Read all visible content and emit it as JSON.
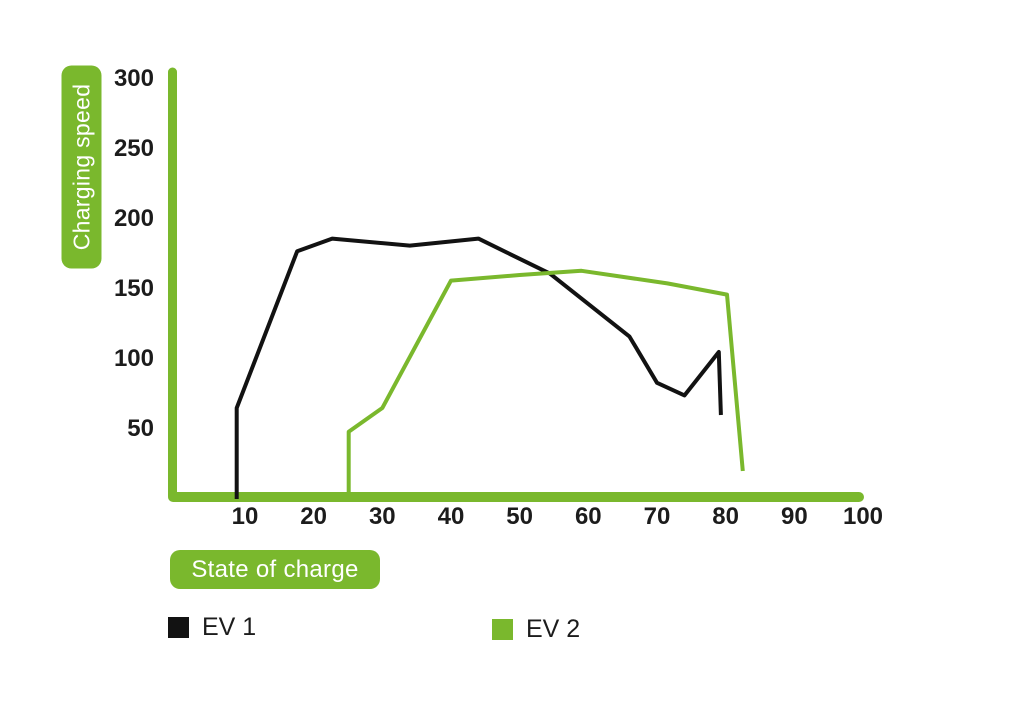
{
  "colors": {
    "accent_green": "#7ab82d",
    "series_black": "#121212",
    "tick_text": "#1c1c1c"
  },
  "chart_data": {
    "type": "line",
    "title": "",
    "xlabel": "State of charge",
    "ylabel": "Charging speed",
    "xlim": [
      0,
      100
    ],
    "ylim": [
      0,
      300
    ],
    "x_ticks": [
      10,
      20,
      30,
      40,
      50,
      60,
      70,
      80,
      90,
      100
    ],
    "y_ticks": [
      50,
      100,
      150,
      200,
      250,
      300
    ],
    "grid": false,
    "legend_position": "bottom",
    "series": [
      {
        "name": "EV 1",
        "color": "#121212",
        "points": [
          [
            8.8,
            0
          ],
          [
            8.8,
            65
          ],
          [
            17.6,
            177
          ],
          [
            22.7,
            186
          ],
          [
            34,
            181
          ],
          [
            44,
            186
          ],
          [
            54.4,
            161
          ],
          [
            66,
            116
          ],
          [
            70,
            83
          ],
          [
            74,
            74
          ],
          [
            79,
            105
          ],
          [
            79.3,
            60
          ]
        ]
      },
      {
        "name": "EV 2",
        "color": "#7ab82d",
        "points": [
          [
            25.1,
            0
          ],
          [
            25.1,
            48
          ],
          [
            30,
            65
          ],
          [
            40,
            156
          ],
          [
            50,
            160
          ],
          [
            59,
            163
          ],
          [
            71.5,
            154
          ],
          [
            80.2,
            146
          ],
          [
            82.5,
            20
          ]
        ]
      }
    ]
  },
  "legend": {
    "items": [
      {
        "label": "EV 1",
        "color": "#121212"
      },
      {
        "label": "EV 2",
        "color": "#7ab82d"
      }
    ]
  }
}
